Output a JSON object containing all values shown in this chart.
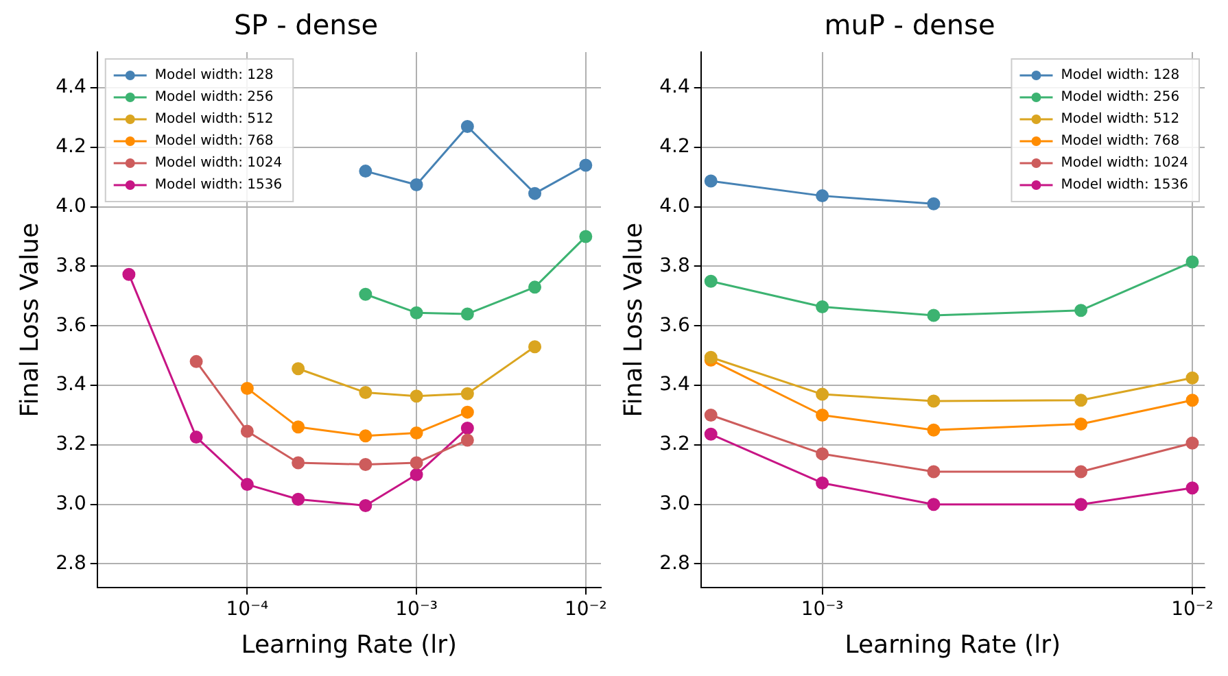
{
  "chart_data": [
    {
      "type": "line",
      "title": "SP - dense",
      "xlabel": "Learning Rate (lr)",
      "ylabel": "Final Loss Value",
      "log": "x",
      "grid": true,
      "legend": "top left",
      "marker": "circle",
      "line_style": "solid",
      "xlim": [
        1.3e-05,
        0.0123
      ],
      "ylim": [
        2.72,
        4.52
      ],
      "xticks": [
        {
          "value": 0.0001,
          "label": "10⁻⁴"
        },
        {
          "value": 0.001,
          "label": "10⁻³"
        },
        {
          "value": 0.01,
          "label": "10⁻²"
        }
      ],
      "yticks": [
        {
          "value": 2.8,
          "label": "2.8"
        },
        {
          "value": 3,
          "label": "3.0"
        },
        {
          "value": 3.2,
          "label": "3.2"
        },
        {
          "value": 3.4,
          "label": "3.4"
        },
        {
          "value": 3.6,
          "label": "3.6"
        },
        {
          "value": 3.8,
          "label": "3.8"
        },
        {
          "value": 4,
          "label": "4.0"
        },
        {
          "value": 4.2,
          "label": "4.2"
        },
        {
          "value": 4.4,
          "label": "4.4"
        }
      ],
      "series": [
        {
          "name": "Model width: 128",
          "color": "#4682b4",
          "x": [
            0.0005,
            0.001,
            0.002,
            0.005,
            0.01
          ],
          "values": [
            4.12,
            4.074,
            4.27,
            4.045,
            4.14
          ]
        },
        {
          "name": "Model width: 256",
          "color": "#3cb371",
          "x": [
            0.0005,
            0.001,
            0.002,
            0.005,
            0.01
          ],
          "values": [
            3.706,
            3.644,
            3.64,
            3.73,
            3.9
          ]
        },
        {
          "name": "Model width: 512",
          "color": "#daa520",
          "x": [
            0.0002,
            0.0005,
            0.001,
            0.002,
            0.005
          ],
          "values": [
            3.456,
            3.376,
            3.364,
            3.372,
            3.53
          ]
        },
        {
          "name": "Model width: 768",
          "color": "#ff8c00",
          "x": [
            0.0001,
            0.0002,
            0.0005,
            0.001,
            0.002
          ],
          "values": [
            3.39,
            3.26,
            3.23,
            3.24,
            3.31
          ]
        },
        {
          "name": "Model width: 1024",
          "color": "#cd5c5c",
          "x": [
            5e-05,
            0.0001,
            0.0002,
            0.0005,
            0.001,
            0.002
          ],
          "values": [
            3.48,
            3.246,
            3.14,
            3.134,
            3.14,
            3.216
          ]
        },
        {
          "name": "Model width: 1536",
          "color": "#c71585",
          "x": [
            2e-05,
            5e-05,
            0.0001,
            0.0002,
            0.0005,
            0.001,
            0.002
          ],
          "values": [
            3.773,
            3.226,
            3.067,
            3.017,
            2.996,
            3.1,
            3.256
          ]
        }
      ]
    },
    {
      "type": "line",
      "title": "muP - dense",
      "xlabel": "Learning Rate (lr)",
      "ylabel": "Final Loss Value",
      "log": "x",
      "grid": true,
      "legend": "top right",
      "marker": "circle",
      "line_style": "solid",
      "xlim": [
        0.00047,
        0.0108
      ],
      "ylim": [
        2.72,
        4.52
      ],
      "xticks": [
        {
          "value": 0.001,
          "label": "10⁻³"
        },
        {
          "value": 0.01,
          "label": "10⁻²"
        }
      ],
      "yticks": [
        {
          "value": 2.8,
          "label": "2.8"
        },
        {
          "value": 3,
          "label": "3.0"
        },
        {
          "value": 3.2,
          "label": "3.2"
        },
        {
          "value": 3.4,
          "label": "3.4"
        },
        {
          "value": 3.6,
          "label": "3.6"
        },
        {
          "value": 3.8,
          "label": "3.8"
        },
        {
          "value": 4,
          "label": "4.0"
        },
        {
          "value": 4.2,
          "label": "4.2"
        },
        {
          "value": 4.4,
          "label": "4.4"
        }
      ],
      "series": [
        {
          "name": "Model width: 128",
          "color": "#4682b4",
          "x": [
            0.0005,
            0.001,
            0.002
          ],
          "values": [
            4.087,
            4.037,
            4.01
          ]
        },
        {
          "name": "Model width: 256",
          "color": "#3cb371",
          "x": [
            0.0005,
            0.001,
            0.002,
            0.005,
            0.01
          ],
          "values": [
            3.75,
            3.664,
            3.635,
            3.652,
            3.815
          ]
        },
        {
          "name": "Model width: 512",
          "color": "#daa520",
          "x": [
            0.0005,
            0.001,
            0.002,
            0.005,
            0.01
          ],
          "values": [
            3.494,
            3.37,
            3.347,
            3.35,
            3.425
          ]
        },
        {
          "name": "Model width: 768",
          "color": "#ff8c00",
          "x": [
            0.0005,
            0.001,
            0.002,
            0.005,
            0.01
          ],
          "values": [
            3.485,
            3.3,
            3.25,
            3.27,
            3.35
          ]
        },
        {
          "name": "Model width: 1024",
          "color": "#cd5c5c",
          "x": [
            0.0005,
            0.001,
            0.002,
            0.005,
            0.01
          ],
          "values": [
            3.3,
            3.17,
            3.11,
            3.11,
            3.206
          ]
        },
        {
          "name": "Model width: 1536",
          "color": "#c71585",
          "x": [
            0.0005,
            0.001,
            0.002,
            0.005,
            0.01
          ],
          "values": [
            3.236,
            3.072,
            3.0,
            3.0,
            3.055
          ]
        }
      ]
    }
  ]
}
